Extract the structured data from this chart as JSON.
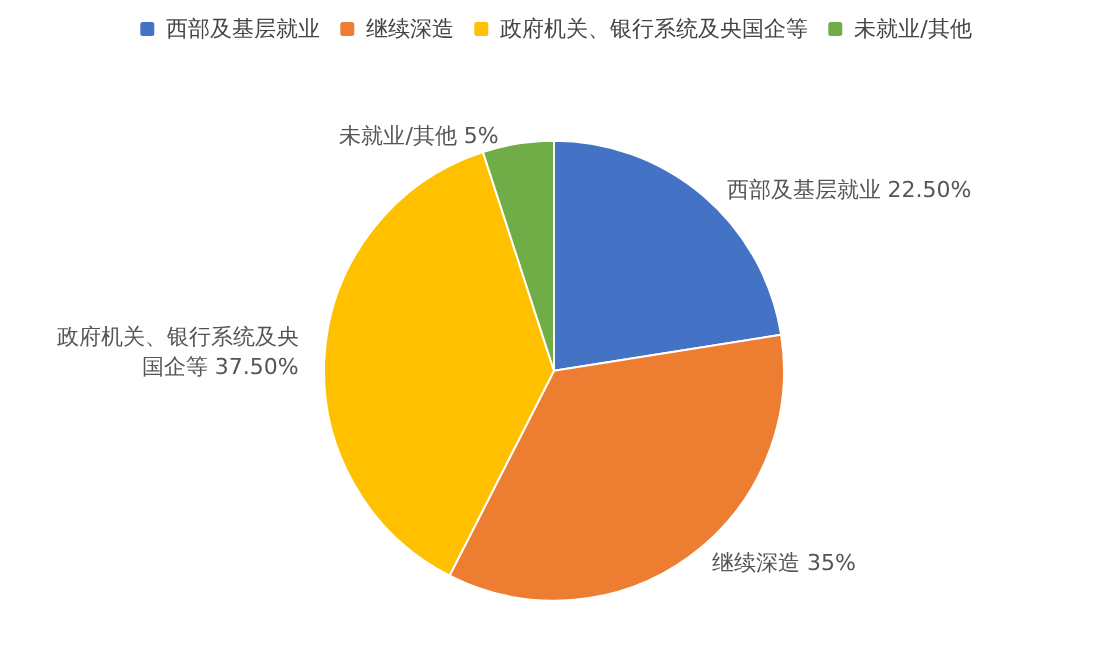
{
  "chart_data": {
    "type": "pie",
    "categories": [
      "西部及基层就业",
      "继续深造",
      "政府机关、银行系统及央国企等",
      "未就业/其他"
    ],
    "values": [
      22.5,
      35,
      37.5,
      5
    ],
    "colors": [
      "#4472c4",
      "#ed7d31",
      "#ffc000",
      "#70ad47"
    ],
    "value_labels": [
      "西部及基层就业 22.50%",
      "继续深造 35%",
      "政府机关、银行系统及央国企等 37.50%",
      "未就业/其他 5%"
    ],
    "legend": "top"
  }
}
